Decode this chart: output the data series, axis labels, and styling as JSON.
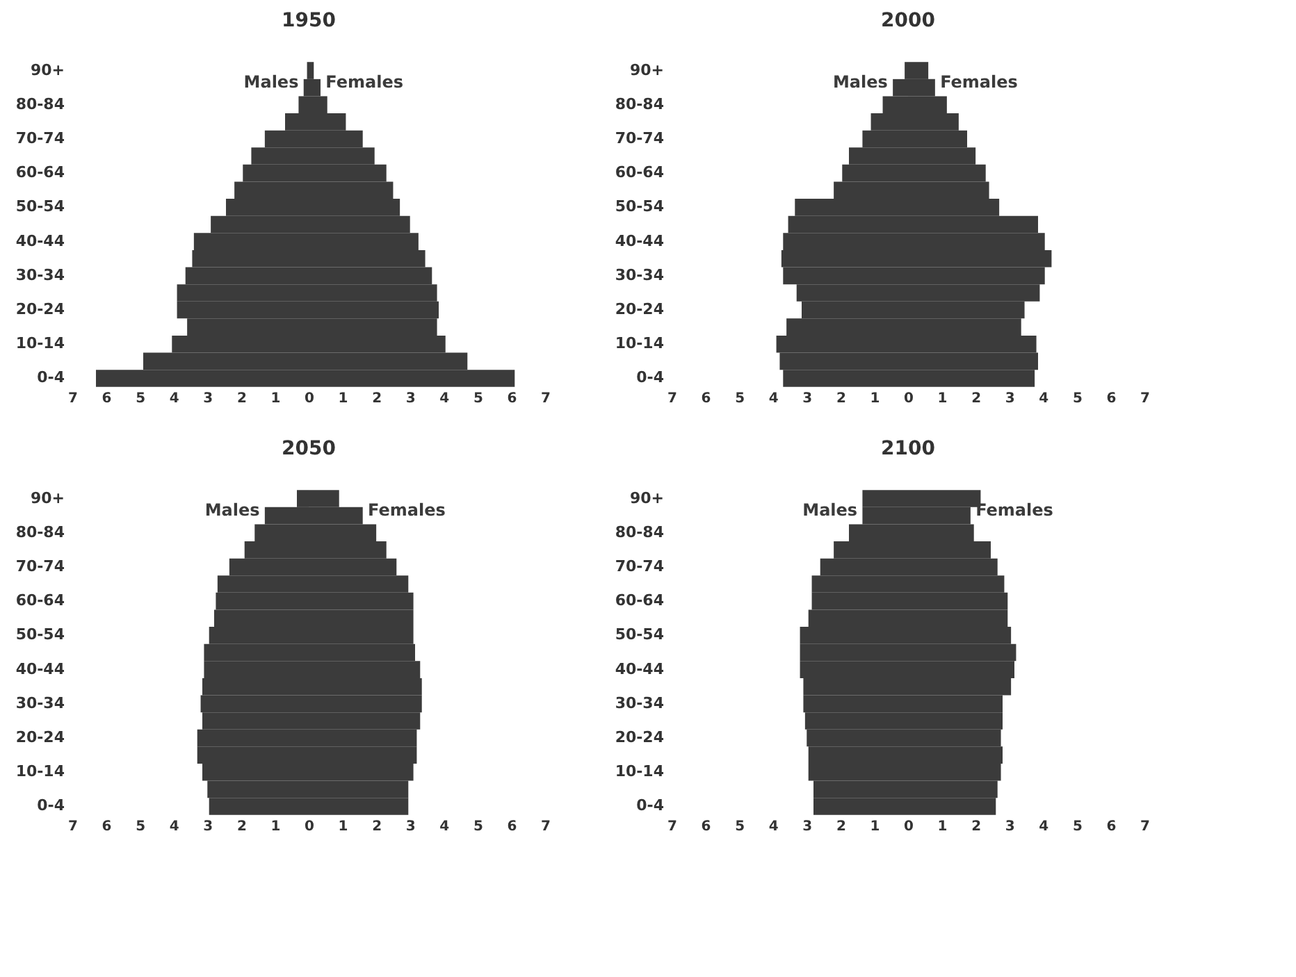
{
  "chart_data": [
    {
      "type": "bar",
      "orientation": "horizontal",
      "stacked": true,
      "title": "1950",
      "legend": false,
      "grid": false,
      "categories": [
        "90+",
        null,
        "80-84",
        null,
        "70-74",
        null,
        "60-64",
        null,
        "50-54",
        null,
        "40-44",
        null,
        "30-34",
        null,
        "20-24",
        null,
        "10-14",
        null,
        "0-4"
      ],
      "series": [
        {
          "name": "Males",
          "color": "#3b3b3b",
          "values": [
            -0.05,
            -0.15,
            -0.3,
            -0.7,
            -1.3,
            -1.7,
            -1.95,
            -2.2,
            -2.45,
            -2.9,
            -3.4,
            -3.45,
            -3.65,
            -3.9,
            -3.9,
            -3.6,
            -4.05,
            -4.9,
            -6.3
          ]
        },
        {
          "name": "Females",
          "color": "#3b3b3b",
          "values": [
            0.15,
            0.35,
            0.55,
            1.1,
            1.6,
            1.95,
            2.3,
            2.5,
            2.7,
            3.0,
            3.25,
            3.45,
            3.65,
            3.8,
            3.85,
            3.8,
            4.05,
            4.7,
            6.1
          ]
        }
      ],
      "xlim": [
        -7,
        7
      ],
      "xticks": [
        {
          "value": -7,
          "label": "7"
        },
        {
          "value": -6,
          "label": "6"
        },
        {
          "value": -5,
          "label": "5"
        },
        {
          "value": -4,
          "label": "4"
        },
        {
          "value": -3,
          "label": "3"
        },
        {
          "value": -2,
          "label": "2"
        },
        {
          "value": -1,
          "label": "1"
        },
        0,
        1,
        2,
        3,
        4,
        5,
        6,
        7
      ]
    },
    {
      "type": "bar",
      "orientation": "horizontal",
      "stacked": true,
      "title": "2000",
      "legend": false,
      "grid": false,
      "categories": [
        "90+",
        null,
        "80-84",
        null,
        "70-74",
        null,
        "60-64",
        null,
        "50-54",
        null,
        "40-44",
        null,
        "30-34",
        null,
        "20-24",
        null,
        "10-14",
        null,
        "0-4"
      ],
      "series": [
        {
          "name": "Males",
          "color": "#3b3b3b",
          "values": [
            -0.1,
            -0.45,
            -0.75,
            -1.1,
            -1.35,
            -1.75,
            -1.95,
            -2.2,
            -3.35,
            -3.55,
            -3.7,
            -3.75,
            -3.7,
            -3.3,
            -3.15,
            -3.6,
            -3.9,
            -3.8,
            -3.7
          ]
        },
        {
          "name": "Females",
          "color": "#3b3b3b",
          "values": [
            0.6,
            0.8,
            1.15,
            1.5,
            1.75,
            2.0,
            2.3,
            2.4,
            2.7,
            3.85,
            4.05,
            4.25,
            4.05,
            3.9,
            3.45,
            3.35,
            3.8,
            3.85,
            3.75
          ]
        }
      ],
      "xlim": [
        -7,
        7
      ],
      "xticks": [
        {
          "value": -7,
          "label": "7"
        },
        {
          "value": -6,
          "label": "6"
        },
        {
          "value": -5,
          "label": "5"
        },
        {
          "value": -4,
          "label": "4"
        },
        {
          "value": -3,
          "label": "3"
        },
        {
          "value": -2,
          "label": "2"
        },
        {
          "value": -1,
          "label": "1"
        },
        0,
        1,
        2,
        3,
        4,
        5,
        6,
        7
      ]
    },
    {
      "type": "bar",
      "orientation": "horizontal",
      "stacked": true,
      "title": "2050",
      "legend": false,
      "grid": false,
      "categories": [
        "90+",
        null,
        "80-84",
        null,
        "70-74",
        null,
        "60-64",
        null,
        "50-54",
        null,
        "40-44",
        null,
        "30-34",
        null,
        "20-24",
        null,
        "10-14",
        null,
        "0-4"
      ],
      "series": [
        {
          "name": "Males",
          "color": "#3b3b3b",
          "values": [
            -0.35,
            -1.3,
            -1.6,
            -1.9,
            -2.35,
            -2.7,
            -2.75,
            -2.8,
            -2.95,
            -3.1,
            -3.1,
            -3.15,
            -3.2,
            -3.15,
            -3.3,
            -3.3,
            -3.15,
            -3.0,
            -2.95
          ]
        },
        {
          "name": "Females",
          "color": "#3b3b3b",
          "values": [
            0.9,
            1.6,
            2.0,
            2.3,
            2.6,
            2.95,
            3.1,
            3.1,
            3.1,
            3.15,
            3.3,
            3.35,
            3.35,
            3.3,
            3.2,
            3.2,
            3.1,
            2.95,
            2.95
          ]
        }
      ],
      "xlim": [
        -7,
        7
      ],
      "xticks": [
        {
          "value": -7,
          "label": "7"
        },
        {
          "value": -6,
          "label": "6"
        },
        {
          "value": -5,
          "label": "5"
        },
        {
          "value": -4,
          "label": "4"
        },
        {
          "value": -3,
          "label": "3"
        },
        {
          "value": -2,
          "label": "2"
        },
        {
          "value": -1,
          "label": "1"
        },
        0,
        1,
        2,
        3,
        4,
        5,
        6,
        7
      ]
    },
    {
      "type": "bar",
      "orientation": "horizontal",
      "stacked": true,
      "title": "2100",
      "legend": false,
      "grid": false,
      "categories": [
        "90+",
        null,
        "80-84",
        null,
        "70-74",
        null,
        "60-64",
        null,
        "50-54",
        null,
        "40-44",
        null,
        "30-34",
        null,
        "20-24",
        null,
        "10-14",
        null,
        "0-4"
      ],
      "series": [
        {
          "name": "Males",
          "color": "#3b3b3b",
          "values": [
            -1.35,
            -1.35,
            -1.75,
            -2.2,
            -2.6,
            -2.85,
            -2.85,
            -2.95,
            -3.2,
            -3.2,
            -3.2,
            -3.1,
            -3.1,
            -3.05,
            -3.0,
            -2.95,
            -2.95,
            -2.8,
            -2.8
          ]
        },
        {
          "name": "Females",
          "color": "#3b3b3b",
          "values": [
            2.15,
            1.85,
            1.95,
            2.45,
            2.65,
            2.85,
            2.95,
            2.95,
            3.05,
            3.2,
            3.15,
            3.05,
            2.8,
            2.8,
            2.75,
            2.8,
            2.75,
            2.65,
            2.6
          ]
        }
      ],
      "xlim": [
        -7,
        7
      ],
      "xticks": [
        {
          "value": -7,
          "label": "7"
        },
        {
          "value": -6,
          "label": "6"
        },
        {
          "value": -5,
          "label": "5"
        },
        {
          "value": -4,
          "label": "4"
        },
        {
          "value": -3,
          "label": "3"
        },
        {
          "value": -2,
          "label": "2"
        },
        {
          "value": -1,
          "label": "1"
        },
        0,
        1,
        2,
        3,
        4,
        5,
        6,
        7
      ]
    }
  ]
}
